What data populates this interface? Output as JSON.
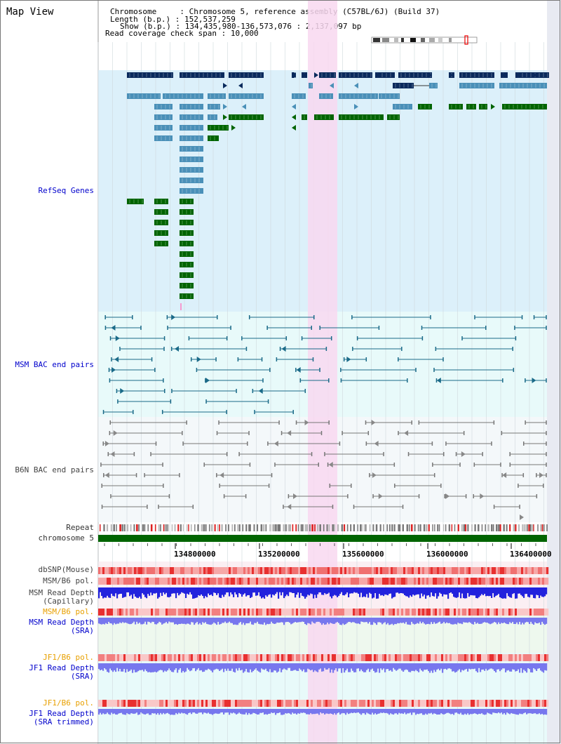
{
  "map_title": "Map View",
  "header": {
    "chromosome_key": "Chromosome",
    "chromosome_val": "Chromosome 5, reference assembly (C57BL/6J) (Build 37)",
    "length_key": "Length (b.p.)",
    "length_val": "152,537,259",
    "show_key": "Show (b.p.)",
    "show_val": "134,435,980-136,573,076 : 2,137,097 bp",
    "span_key": "Read coverage check span",
    "span_val": "10,000"
  },
  "tracks": {
    "refseq": "RefSeq Genes",
    "msm_bac": "MSM BAC end pairs",
    "b6n_bac": "B6N BAC end pairs",
    "repeat": "Repeat",
    "chromosome": "chromosome 5",
    "dbsnp": "dbSNP(Mouse)",
    "msm_b6_pol_1": "MSM/B6 pol.",
    "msm_depth_cap_1": "MSM Read Depth",
    "msm_depth_cap_2": "(Capillary)",
    "msm_b6_pol_2": "MSM/B6 pol.",
    "msm_depth_sra_1": "MSM Read Depth",
    "msm_depth_sra_2": "(SRA)",
    "jf1_b6_pol_1": "JF1/B6 pol.",
    "jf1_depth_sra_1": "JF1 Read Depth",
    "jf1_depth_sra_2": "(SRA)",
    "jf1_b6_pol_2": "JF1/B6 pol.",
    "jf1_depth_trim_1": "JF1 Read Depth",
    "jf1_depth_trim_2": "(SRA trimmed)"
  },
  "axis_ticks": [
    "134800000",
    "135200000",
    "135600000",
    "136000000",
    "136400000"
  ],
  "colors": {
    "refseq_bg": "#dcf0fa",
    "bac_bg": "#e8fafa",
    "highlight": "#f8d8f0",
    "gene_dark": "#0a2a5c",
    "gene_mid": "#4a90b8",
    "gene_green": "#006400",
    "chromosome": "#006400",
    "snp_red": "#ee3333",
    "depth_blue": "#2222dd",
    "depth_light": "#7777ee"
  }
}
